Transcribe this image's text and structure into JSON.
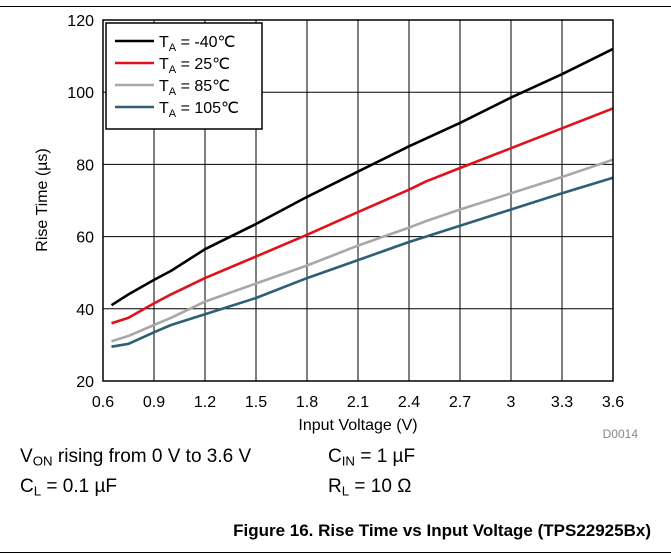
{
  "chart_data": {
    "type": "line",
    "xlabel": "Input Voltage (V)",
    "ylabel": "Rise Time (µs)",
    "xlim": [
      0.6,
      3.6
    ],
    "ylim": [
      20,
      120
    ],
    "xticks": [
      0.6,
      0.9,
      1.2,
      1.5,
      1.8,
      2.1,
      2.4,
      2.7,
      3,
      3.3,
      3.6
    ],
    "xtick_labels": [
      "0.6",
      "0.9",
      "1.2",
      "1.5",
      "1.8",
      "2.1",
      "2.4",
      "2.7",
      "3",
      "3.3",
      "3.6"
    ],
    "yticks": [
      20,
      40,
      60,
      80,
      100,
      120
    ],
    "ytick_labels": [
      "20",
      "40",
      "60",
      "80",
      "100",
      "120"
    ],
    "grid": true,
    "legend_position": "top-left",
    "series": [
      {
        "name": "-40℃",
        "color": "#000000",
        "x": [
          0.65,
          0.75,
          0.9,
          1.0,
          1.2,
          1.5,
          1.8,
          2.1,
          2.4,
          2.7,
          3.0,
          3.3,
          3.6
        ],
        "y": [
          41,
          44,
          48,
          50.5,
          56.5,
          63.5,
          71,
          78,
          85,
          91.5,
          98.5,
          105,
          112
        ]
      },
      {
        "name": "25℃",
        "color": "#e0111b",
        "x": [
          0.65,
          0.75,
          0.9,
          1.0,
          1.2,
          1.5,
          1.8,
          2.1,
          2.4,
          2.5,
          2.7,
          3.0,
          3.3,
          3.6
        ],
        "y": [
          36,
          37.5,
          41.5,
          44,
          48.5,
          54.5,
          60.5,
          66.8,
          73,
          75.3,
          79,
          84.5,
          90,
          95.5
        ]
      },
      {
        "name": "85℃",
        "color": "#a8a8a8",
        "x": [
          0.65,
          0.75,
          0.9,
          1.0,
          1.2,
          1.5,
          1.8,
          2.1,
          2.4,
          2.5,
          2.7,
          3.0,
          3.3,
          3.6
        ],
        "y": [
          31,
          32.5,
          35.5,
          37.5,
          42,
          47,
          52,
          57.5,
          62.5,
          64.3,
          67.5,
          72,
          76.5,
          81.3
        ]
      },
      {
        "name": "105℃",
        "color": "#2f5f75",
        "x": [
          0.65,
          0.75,
          0.9,
          1.0,
          1.2,
          1.5,
          1.8,
          2.1,
          2.4,
          2.5,
          2.7,
          3.0,
          3.3,
          3.6
        ],
        "y": [
          29.5,
          30.3,
          33.5,
          35.5,
          38.5,
          43,
          48.5,
          53.5,
          58.5,
          60,
          63,
          67.5,
          72,
          76.3
        ]
      }
    ],
    "legend_prefix": "T",
    "legend_prefix_sub": "A",
    "legend_eq": " = ",
    "watermark": "D0014"
  },
  "conditions": {
    "von": {
      "main": "V",
      "sub": "ON",
      "rest": " rising from 0 V to 3.6 V"
    },
    "cin": {
      "main": "C",
      "sub": "IN",
      "rest": " = 1 µF"
    },
    "cl": {
      "main": "C",
      "sub": "L",
      "rest": " = 0.1 µF"
    },
    "rl": {
      "main": "R",
      "sub": "L",
      "rest": " = 10 Ω"
    }
  },
  "caption": "Figure 16. Rise Time vs Input Voltage (TPS22925Bx)"
}
